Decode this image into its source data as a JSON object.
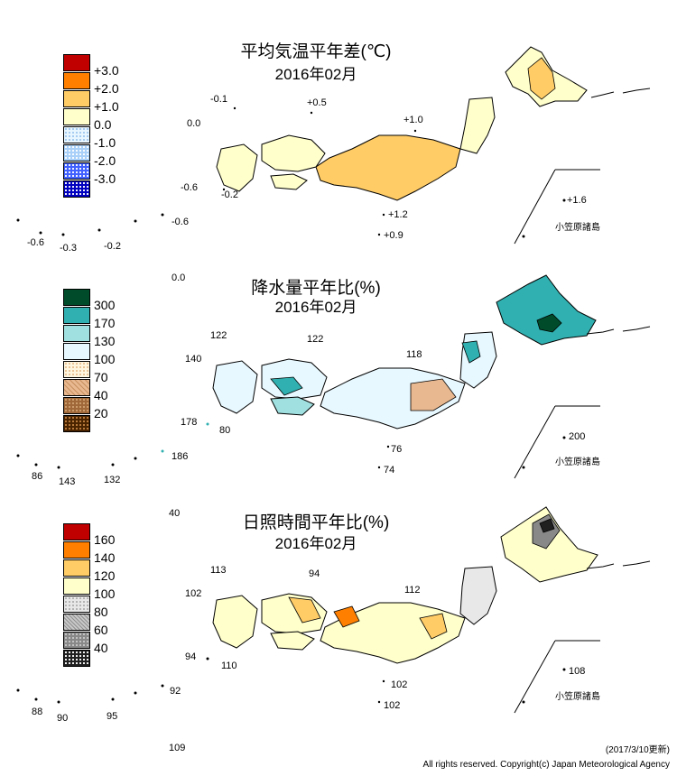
{
  "colors": {
    "temp": [
      "#c00000",
      "#ff8000",
      "#ffcc66",
      "#ffffcc",
      "#e8f6ff",
      "#a8d0f8",
      "#4060ff",
      "#0000c0"
    ],
    "precip": [
      "#004c2a",
      "#30b0b0",
      "#a0e0e0",
      "#e8f8ff",
      "#fff6e0",
      "#e8b890",
      "#a06838",
      "#4a2400"
    ],
    "sun": [
      "#c00000",
      "#ff8000",
      "#ffcc66",
      "#ffffcc",
      "#e8e8e8",
      "#c8c8c8",
      "#888888",
      "#202020"
    ]
  },
  "temp": {
    "title": "平均気温平年差(℃)",
    "date": "2016年02月",
    "legend": [
      "+3.0",
      "+2.0",
      "+1.0",
      "0.0",
      "-1.0",
      "-2.0",
      "-3.0"
    ],
    "values": [
      "-0.1",
      "+0.5",
      "+1.0",
      "0.0",
      "-0.6",
      "-0.2",
      "+1.6",
      "+1.2",
      "+0.9",
      "-0.6",
      "-0.6",
      "-0.3",
      "-0.2",
      "0.0"
    ],
    "island_label": "小笠原諸島"
  },
  "precip": {
    "title": "降水量平年比(%)",
    "date": "2016年02月",
    "legend": [
      "300",
      "170",
      "130",
      "100",
      "70",
      "40",
      "20"
    ],
    "values": [
      "122",
      "122",
      "140",
      "118",
      "178",
      "80",
      "200",
      "76",
      "74",
      "86",
      "143",
      "132",
      "186",
      "40"
    ],
    "island_label": "小笠原諸島"
  },
  "sun": {
    "title": "日照時間平年比(%)",
    "date": "2016年02月",
    "legend": [
      "160",
      "140",
      "120",
      "100",
      "80",
      "60",
      "40"
    ],
    "values": [
      "113",
      "94",
      "102",
      "112",
      "94",
      "110",
      "108",
      "102",
      "102",
      "92",
      "88",
      "90",
      "95",
      "109"
    ],
    "island_label": "小笠原諸島"
  },
  "footer": {
    "updated": "(2017/3/10更新)",
    "copyright": "All rights reserved. Copyright(c) Japan Meteorological Agency"
  }
}
